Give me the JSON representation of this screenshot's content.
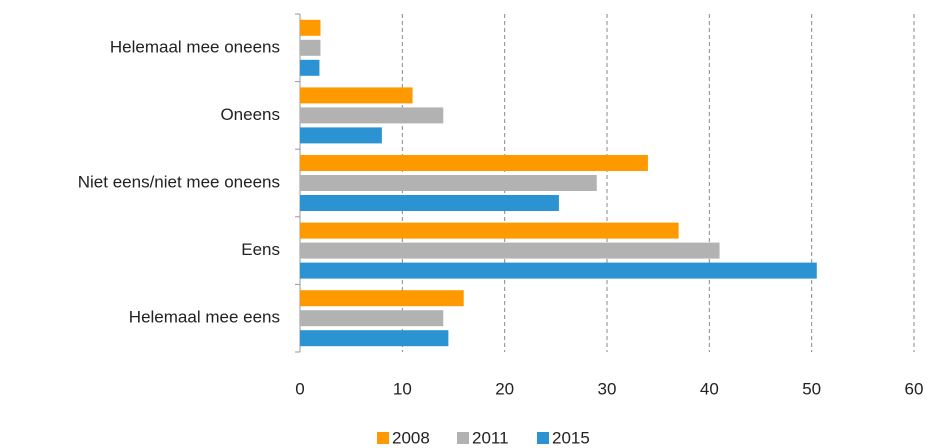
{
  "chart_data": {
    "type": "barh",
    "categories": [
      "Helemaal mee oneens",
      "Oneens",
      "Niet eens/niet mee oneens",
      "Eens",
      "Helemaal mee eens"
    ],
    "series": [
      {
        "name": "2008",
        "color": "#ff9900",
        "values": [
          2,
          11,
          34,
          37,
          16
        ]
      },
      {
        "name": "2011",
        "color": "#b2b2b2",
        "values": [
          2,
          14,
          29,
          41,
          14
        ]
      },
      {
        "name": "2015",
        "color": "#2b93d1",
        "values": [
          1.9,
          8,
          25.3,
          50.5,
          14.5
        ]
      }
    ],
    "xlim": [
      0,
      60
    ],
    "xticks": [
      0,
      10,
      20,
      30,
      40,
      50,
      60
    ],
    "grid": true,
    "legend": "bottom"
  }
}
